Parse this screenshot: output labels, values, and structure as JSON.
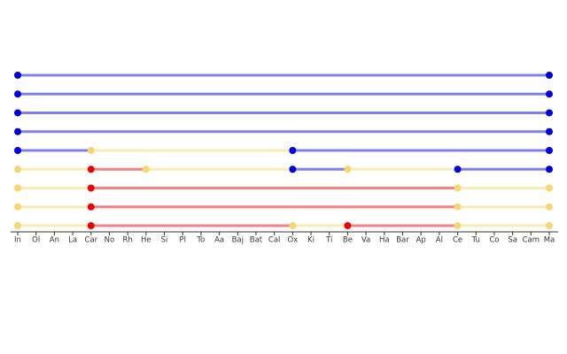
{
  "chart_data": {
    "type": "timeline",
    "categories": [
      "In",
      "Ol",
      "An",
      "La",
      "Car",
      "No",
      "Rh",
      "He",
      "Si",
      "Pl",
      "To",
      "Aa",
      "Baj",
      "Bat",
      "Cal",
      "Ox",
      "Ki",
      "Ti",
      "Be",
      "Va",
      "Ha",
      "Bar",
      "Ap",
      "Al",
      "Ce",
      "Tu",
      "Co",
      "Sa",
      "Cam",
      "Ma"
    ],
    "rows": [
      {
        "segments": [
          {
            "from": "In",
            "to": "Ma",
            "color": "#0000dd"
          }
        ]
      },
      {
        "segments": [
          {
            "from": "In",
            "to": "Ma",
            "color": "#0000dd"
          }
        ]
      },
      {
        "segments": [
          {
            "from": "In",
            "to": "Ma",
            "color": "#0000dd"
          }
        ]
      },
      {
        "segments": [
          {
            "from": "In",
            "to": "Ma",
            "color": "#0000dd"
          }
        ]
      },
      {
        "segments": [
          {
            "from": "In",
            "to": "Car",
            "color": "#0000dd"
          },
          {
            "from": "Car",
            "to": "Ox",
            "color": "#f5d76e"
          },
          {
            "from": "Ox",
            "to": "Ma",
            "color": "#0000dd"
          }
        ]
      },
      {
        "segments": [
          {
            "from": "In",
            "to": "Car",
            "color": "#f5d76e"
          },
          {
            "from": "Car",
            "to": "He",
            "color": "#ee0000"
          },
          {
            "from": "He",
            "to": "Ox",
            "color": "#f5d76e"
          },
          {
            "from": "Ox",
            "to": "Be",
            "color": "#0000dd"
          },
          {
            "from": "Be",
            "to": "Ce",
            "color": "#f5d76e"
          },
          {
            "from": "Ce",
            "to": "Ma",
            "color": "#0000dd"
          }
        ]
      },
      {
        "segments": [
          {
            "from": "In",
            "to": "Car",
            "color": "#f5d76e"
          },
          {
            "from": "Car",
            "to": "Ce",
            "color": "#ee0000"
          },
          {
            "from": "Ce",
            "to": "Ma",
            "color": "#f5d76e"
          }
        ]
      },
      {
        "segments": [
          {
            "from": "In",
            "to": "Car",
            "color": "#f5d76e"
          },
          {
            "from": "Car",
            "to": "Ce",
            "color": "#ee0000"
          },
          {
            "from": "Ce",
            "to": "Ma",
            "color": "#f5d76e"
          }
        ]
      },
      {
        "segments": [
          {
            "from": "In",
            "to": "Car",
            "color": "#f5d76e"
          },
          {
            "from": "Car",
            "to": "Ox",
            "color": "#ee0000"
          },
          {
            "from": "Ox",
            "to": "Be",
            "color": "#f5d76e"
          },
          {
            "from": "Be",
            "to": "Ce",
            "color": "#ee0000"
          },
          {
            "from": "Ce",
            "to": "Ma",
            "color": "#f5d76e"
          }
        ]
      }
    ]
  }
}
